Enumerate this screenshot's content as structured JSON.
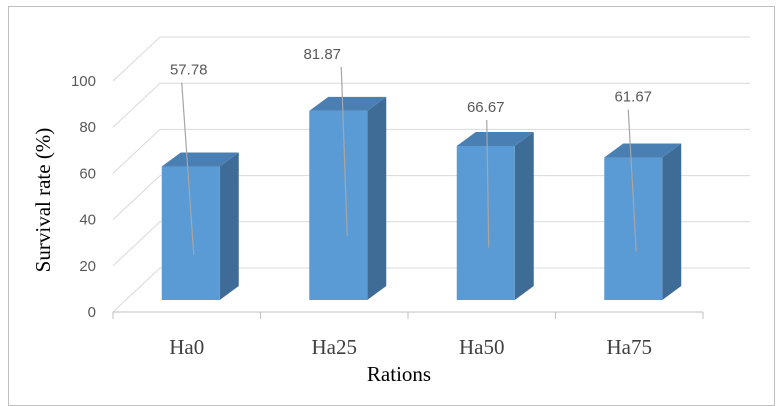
{
  "chart_data": {
    "type": "bar",
    "categories": [
      "Ha0",
      "Ha25",
      "Ha50",
      "Ha75"
    ],
    "values": [
      57.78,
      81.87,
      66.67,
      61.67
    ],
    "data_labels": [
      "57.78",
      "81.87",
      "66.67",
      "61.67"
    ],
    "xlabel": "Rations",
    "ylabel": "Survival rate (%)",
    "ylim": [
      0,
      100
    ],
    "yticks": [
      "0",
      "20",
      "40",
      "60",
      "80",
      "100"
    ],
    "grid": true,
    "three_d": true,
    "colors": {
      "bar_front": "#5b9bd5",
      "bar_top": "#4a7fb3",
      "bar_side": "#3e6c97",
      "grid": "#d9d9d9",
      "axis": "#bfbfbf",
      "leader": "#a6a6a6"
    }
  }
}
